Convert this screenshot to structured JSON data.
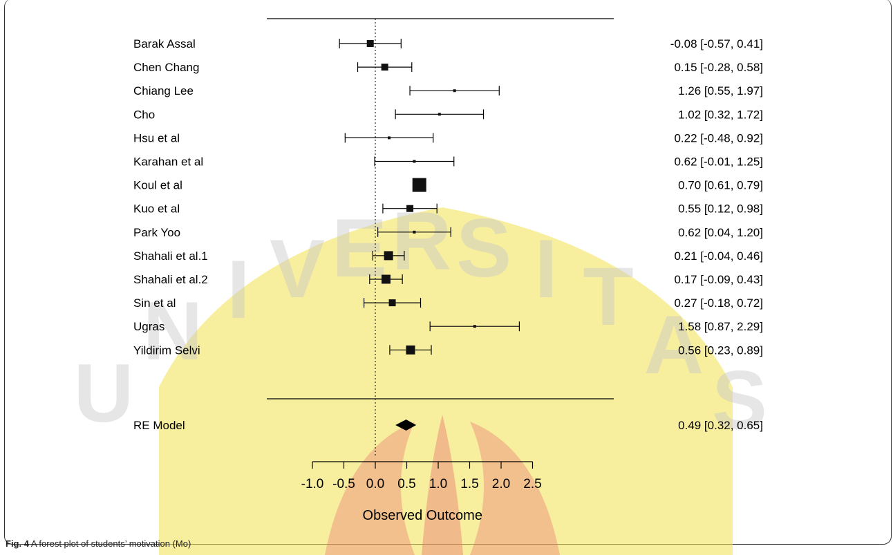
{
  "chart_data": {
    "type": "forest",
    "studies": [
      {
        "name": "Barak Assal",
        "estimate": -0.08,
        "ci": [
          -0.57,
          0.41
        ],
        "label": "-0.08 [-0.57, 0.41]",
        "weight": 2
      },
      {
        "name": "Chen Chang",
        "estimate": 0.15,
        "ci": [
          -0.28,
          0.58
        ],
        "label": "0.15 [-0.28, 0.58]",
        "weight": 2
      },
      {
        "name": "Chiang Lee",
        "estimate": 1.26,
        "ci": [
          0.55,
          1.97
        ],
        "label": "1.26 [0.55, 1.97]",
        "weight": 1
      },
      {
        "name": "Cho",
        "estimate": 1.02,
        "ci": [
          0.32,
          1.72
        ],
        "label": "1.02 [0.32, 1.72]",
        "weight": 1
      },
      {
        "name": "Hsu et al",
        "estimate": 0.22,
        "ci": [
          -0.48,
          0.92
        ],
        "label": "0.22 [-0.48, 0.92]",
        "weight": 1
      },
      {
        "name": "Karahan et al",
        "estimate": 0.62,
        "ci": [
          -0.01,
          1.25
        ],
        "label": "0.62 [-0.01, 1.25]",
        "weight": 1
      },
      {
        "name": "Koul et al",
        "estimate": 0.7,
        "ci": [
          0.61,
          0.79
        ],
        "label": "0.70 [0.61, 0.79]",
        "weight": 4
      },
      {
        "name": "Kuo et al",
        "estimate": 0.55,
        "ci": [
          0.12,
          0.98
        ],
        "label": "0.55 [0.12, 0.98]",
        "weight": 2
      },
      {
        "name": "Park Yoo",
        "estimate": 0.62,
        "ci": [
          0.04,
          1.2
        ],
        "label": "0.62 [0.04, 1.20]",
        "weight": 1
      },
      {
        "name": "Shahali et al.1",
        "estimate": 0.21,
        "ci": [
          -0.04,
          0.46
        ],
        "label": "0.21 [-0.04, 0.46]",
        "weight": 3
      },
      {
        "name": "Shahali et al.2",
        "estimate": 0.17,
        "ci": [
          -0.09,
          0.43
        ],
        "label": "0.17 [-0.09, 0.43]",
        "weight": 3
      },
      {
        "name": "Sin et al",
        "estimate": 0.27,
        "ci": [
          -0.18,
          0.72
        ],
        "label": "0.27 [-0.18, 0.72]",
        "weight": 2
      },
      {
        "name": "Ugras",
        "estimate": 1.58,
        "ci": [
          0.87,
          2.29
        ],
        "label": "1.58 [0.87, 2.29]",
        "weight": 1
      },
      {
        "name": "Yildirim Selvi",
        "estimate": 0.56,
        "ci": [
          0.23,
          0.89
        ],
        "label": "0.56 [0.23, 0.89]",
        "weight": 3
      }
    ],
    "summary": {
      "name": "RE Model",
      "estimate": 0.49,
      "ci": [
        0.32,
        0.65
      ],
      "label": "0.49 [0.32, 0.65]"
    },
    "x_ticks": [
      -1.0,
      -0.5,
      0.0,
      0.5,
      1.0,
      1.5,
      2.0,
      2.5
    ],
    "x_tick_labels": [
      "-1.0",
      "-0.5",
      "0.0",
      "0.5",
      "1.0",
      "1.5",
      "2.0",
      "2.5"
    ],
    "xlabel": "Observed Outcome",
    "reference_line": 0
  },
  "caption": {
    "prefix": "Fig. 4",
    "text": " A forest plot of students’ motivation (Mo)"
  },
  "watermark": {
    "letters": [
      "U",
      "N",
      "I",
      "V",
      "E",
      "R",
      "S",
      "I",
      "T",
      "A",
      "S"
    ],
    "color": "#f3e24f"
  }
}
